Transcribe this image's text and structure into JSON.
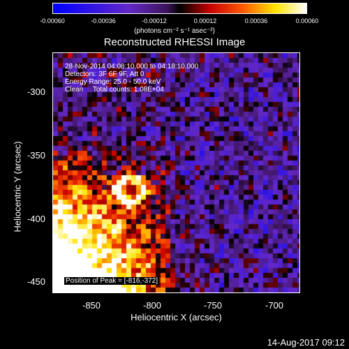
{
  "colorbar": {
    "ticks": [
      "-0.00060",
      "-0.00036",
      "-0.00012",
      "0.00012",
      "0.00036",
      "0.00060"
    ],
    "unit": "(photons cm⁻² s⁻¹ asec⁻²)"
  },
  "title": "Reconstructed RHESSI Image",
  "info": {
    "line1": "28-Nov-2014 04:08:10.000 to 04:18:10.000",
    "line2": "Detectors: 3F 6F 9F, Att 0",
    "line3": "Energy Range: 25.0 - 50.0 keV",
    "line4": "Clean     Total counts: 1.08E+04"
  },
  "yaxis": {
    "label": "Heliocentric Y (arcsec)",
    "ticks": [
      "-300",
      "-350",
      "-400",
      "-450"
    ]
  },
  "xaxis": {
    "label": "Heliocentric X (arcsec)",
    "ticks": [
      "-850",
      "-800",
      "-750",
      "-700"
    ]
  },
  "peak": "Position of Peak = [-816,-372]",
  "footer": "14-Aug-2017 09:12"
}
